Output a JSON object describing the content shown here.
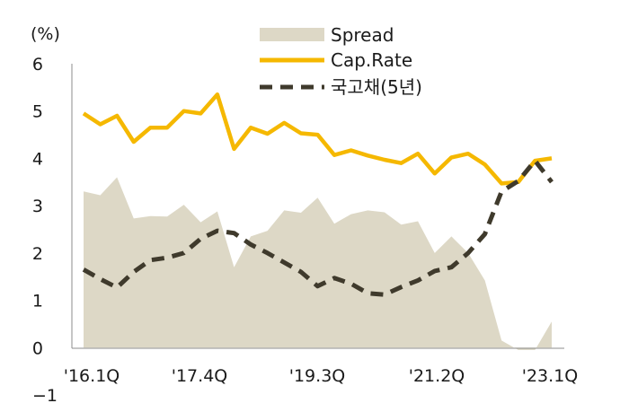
{
  "chart_data": {
    "type": "line",
    "y_unit": "(%)",
    "ylim": [
      -1,
      6
    ],
    "yticks": [
      -1,
      0,
      1,
      2,
      3,
      4,
      5,
      6
    ],
    "x_tick_labels": [
      "'16.1Q",
      "'17.4Q",
      "'19.3Q",
      "'21.2Q",
      "'23.1Q"
    ],
    "legend_position": "top-center",
    "grid": false,
    "series": [
      {
        "name": "Spread",
        "kind": "area",
        "color": "#DDD8C6",
        "values": [
          3.3,
          3.22,
          3.6,
          2.73,
          2.78,
          2.77,
          3.02,
          2.65,
          2.88,
          1.7,
          2.35,
          2.47,
          2.9,
          2.85,
          3.17,
          2.62,
          2.82,
          2.9,
          2.86,
          2.6,
          2.67,
          2.0,
          2.35,
          2.0,
          1.42,
          0.15,
          -0.05,
          -0.05,
          0.55
        ]
      },
      {
        "name": "Cap.Rate",
        "kind": "line",
        "color": "#F5B800",
        "values": [
          4.95,
          4.72,
          4.9,
          4.35,
          4.65,
          4.65,
          5.0,
          4.95,
          5.35,
          4.2,
          4.65,
          4.52,
          4.75,
          4.53,
          4.5,
          4.07,
          4.17,
          4.06,
          3.97,
          3.9,
          4.1,
          3.68,
          4.02,
          4.1,
          3.87,
          3.47,
          3.5,
          3.95,
          4.0
        ]
      },
      {
        "name": "국고채(5년)",
        "kind": "dashed-line",
        "color": "#3F3A2C",
        "values": [
          1.65,
          1.45,
          1.27,
          1.6,
          1.85,
          1.9,
          2.0,
          2.3,
          2.47,
          2.42,
          2.18,
          2.0,
          1.8,
          1.6,
          1.3,
          1.47,
          1.35,
          1.15,
          1.12,
          1.28,
          1.42,
          1.62,
          1.7,
          2.0,
          2.4,
          3.3,
          3.52,
          3.95,
          3.5
        ]
      }
    ]
  }
}
